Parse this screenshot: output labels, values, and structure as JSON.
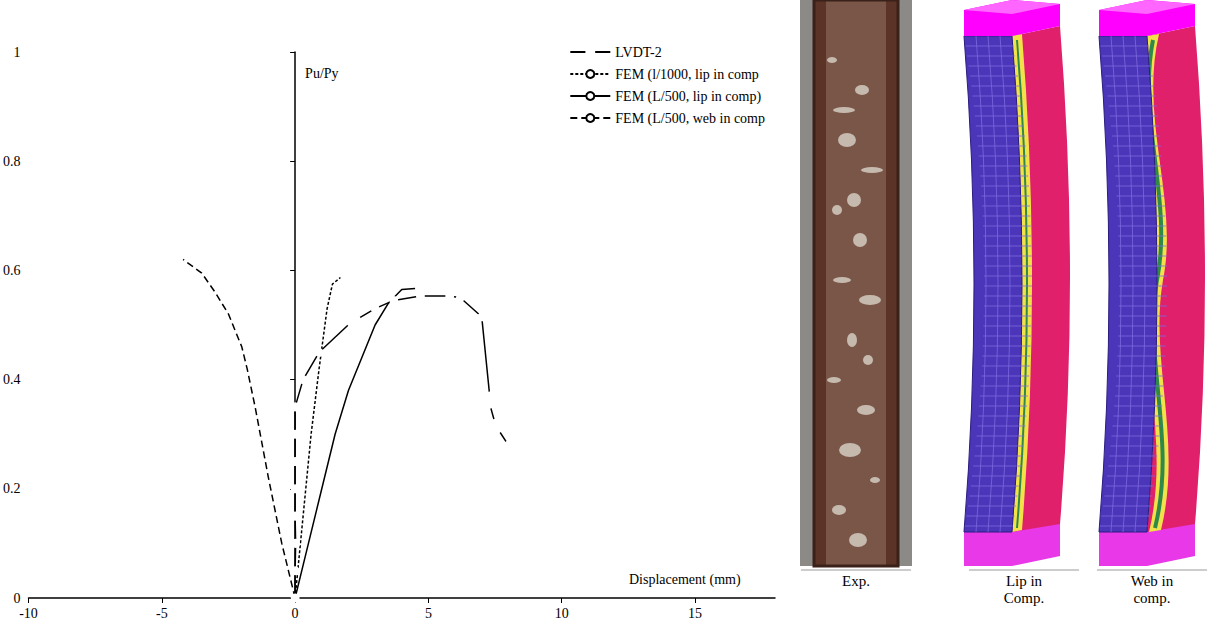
{
  "chart_data": {
    "type": "line",
    "x_label": "Displacement (mm)",
    "y_label": "Pu/Py",
    "xlim": [
      -10,
      18
    ],
    "xticks": [
      -10,
      -5,
      0,
      5,
      10,
      15
    ],
    "ylim": [
      0,
      1
    ],
    "yticks": [
      0,
      0.2,
      0.4,
      0.6,
      0.8,
      1
    ],
    "grid": false,
    "legend": "top-right",
    "series": [
      {
        "name": "LVDT-2",
        "color": "#000000",
        "marker": "circle",
        "line_style": "solid",
        "x": [
          0,
          0,
          0.02,
          0,
          0,
          0,
          0,
          0,
          0.3,
          0.9,
          2.1,
          2.3,
          3.0,
          3.7,
          4.7,
          5.8,
          6.2,
          7.0,
          7.3,
          7.3,
          7.5,
          7.6,
          8.0,
          8.0
        ],
        "values": [
          0,
          0.05,
          0.1,
          0.15,
          0.2,
          0.25,
          0.3,
          0.35,
          0.4,
          0.45,
          0.505,
          0.51,
          0.53,
          0.545,
          0.553,
          0.553,
          0.55,
          0.515,
          0.37,
          0.355,
          0.32,
          0.31,
          0.28,
          0.27
        ]
      },
      {
        "name": "FEM (l/1000, lip in comp",
        "color": "#000000",
        "marker": "none",
        "line_style": "dotted",
        "x": [
          0,
          0.3,
          0.6,
          0.9,
          1.2,
          1.4,
          1.7
        ],
        "values": [
          0,
          0.15,
          0.3,
          0.42,
          0.53,
          0.575,
          0.587
        ]
      },
      {
        "name": "FEM (L/500, lip in comp)",
        "color": "#000000",
        "marker": "none",
        "line_style": "solid",
        "x": [
          0,
          0.5,
          1.0,
          1.5,
          2.0,
          2.5,
          3.0,
          3.5,
          4.0,
          4.5
        ],
        "values": [
          0,
          0.1,
          0.2,
          0.3,
          0.38,
          0.44,
          0.5,
          0.54,
          0.565,
          0.567
        ]
      },
      {
        "name": "FEM (L/500, web in comp",
        "color": "#000000",
        "marker": "none",
        "line_style": "dashed",
        "x": [
          0,
          -0.5,
          -1.0,
          -1.5,
          -1.8,
          -2.0,
          -2.5,
          -3.0,
          -3.5,
          -4.2
        ],
        "values": [
          0,
          0.1,
          0.22,
          0.35,
          0.42,
          0.46,
          0.52,
          0.56,
          0.595,
          0.62
        ]
      }
    ]
  },
  "panels": [
    {
      "caption": "Exp."
    },
    {
      "caption": "Lip in Comp."
    },
    {
      "caption": "Web in comp."
    }
  ]
}
